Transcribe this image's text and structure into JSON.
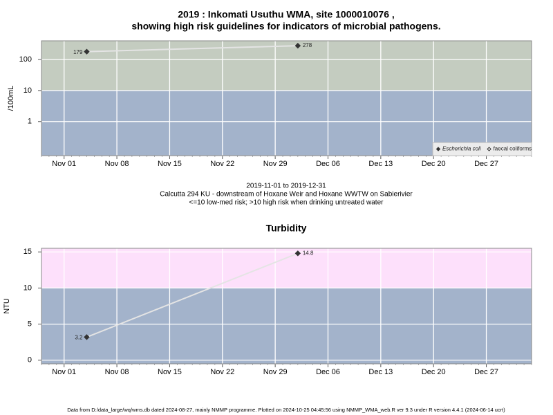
{
  "chart_data": [
    {
      "type": "line",
      "title": [
        "2019 : Inkomati Usuthu WMA, site 1000010076 ,",
        "showing high risk guidelines for indicators of microbial pathogens."
      ],
      "ylabel": "/100mL",
      "xlabel": [
        "2019-11-01 to 2019-12-31",
        "Calcutta 294 KU - downstream of Hoxane Weir and Hoxane WWTW on Sabierivier",
        "<=10 low-med risk; >10 high risk when drinking untreated water"
      ],
      "x": [
        "2019-11-04",
        "2019-12-02"
      ],
      "series": [
        {
          "name": "Escherichia coli",
          "color": "#333333",
          "line_color": "#e4e4e4",
          "marker": "filled",
          "values": [
            179,
            278
          ]
        },
        {
          "name": "faecal coliforms",
          "color": "#333333",
          "line_color": "#e4e4e4",
          "marker": "open",
          "values": [
            null,
            null
          ]
        }
      ],
      "xlim": [
        "2019-10-29",
        "2020-01-02"
      ],
      "xticks": [
        {
          "value": "2019-11-01",
          "label": "Nov 01"
        },
        {
          "value": "2019-11-08",
          "label": "Nov 08"
        },
        {
          "value": "2019-11-15",
          "label": "Nov 15"
        },
        {
          "value": "2019-11-22",
          "label": "Nov 22"
        },
        {
          "value": "2019-11-29",
          "label": "Nov 29"
        },
        {
          "value": "2019-12-06",
          "label": "Dec 06"
        },
        {
          "value": "2019-12-13",
          "label": "Dec 13"
        },
        {
          "value": "2019-12-20",
          "label": "Dec 20"
        },
        {
          "value": "2019-12-27",
          "label": "Dec 27"
        }
      ],
      "ylim": [
        0.08,
        400
      ],
      "yticks": [
        1,
        10,
        100
      ],
      "log_scale": true,
      "threshold": 10,
      "band_colors": {
        "above": "#c4ccc0",
        "below": "#a3b3cb"
      },
      "grid": true,
      "legend": "bottom-right"
    },
    {
      "type": "line",
      "title": "Turbidity",
      "ylabel": "NTU",
      "x": [
        "2019-11-04",
        "2019-12-02"
      ],
      "series": [
        {
          "name": "Turbidity",
          "color": "#333333",
          "line_color": "#e4e4e4",
          "marker": "filled",
          "values": [
            3.2,
            14.8
          ]
        }
      ],
      "xlim": [
        "2019-10-29",
        "2020-01-02"
      ],
      "xticks": [
        {
          "value": "2019-11-01",
          "label": "Nov 01"
        },
        {
          "value": "2019-11-08",
          "label": "Nov 08"
        },
        {
          "value": "2019-11-15",
          "label": "Nov 15"
        },
        {
          "value": "2019-11-22",
          "label": "Nov 22"
        },
        {
          "value": "2019-11-29",
          "label": "Nov 29"
        },
        {
          "value": "2019-12-06",
          "label": "Dec 06"
        },
        {
          "value": "2019-12-13",
          "label": "Dec 13"
        },
        {
          "value": "2019-12-20",
          "label": "Dec 20"
        },
        {
          "value": "2019-12-27",
          "label": "Dec 27"
        }
      ],
      "ylim": [
        -0.5,
        15.5
      ],
      "yticks": [
        0,
        5,
        10,
        15
      ],
      "log_scale": false,
      "threshold": 10,
      "band_colors": {
        "above": "#fde0fb",
        "below": "#a3b3cb"
      },
      "grid": true
    }
  ],
  "footnote": "Data from D:/data_large/wq/wms.db dated 2024-08-27, mainly NMMP programme. Plotted on 2024-10-25 04:45:56 using NMMP_WMA_web.R ver 9.3 under R version 4.4.1 (2024-06-14 ucrt)"
}
